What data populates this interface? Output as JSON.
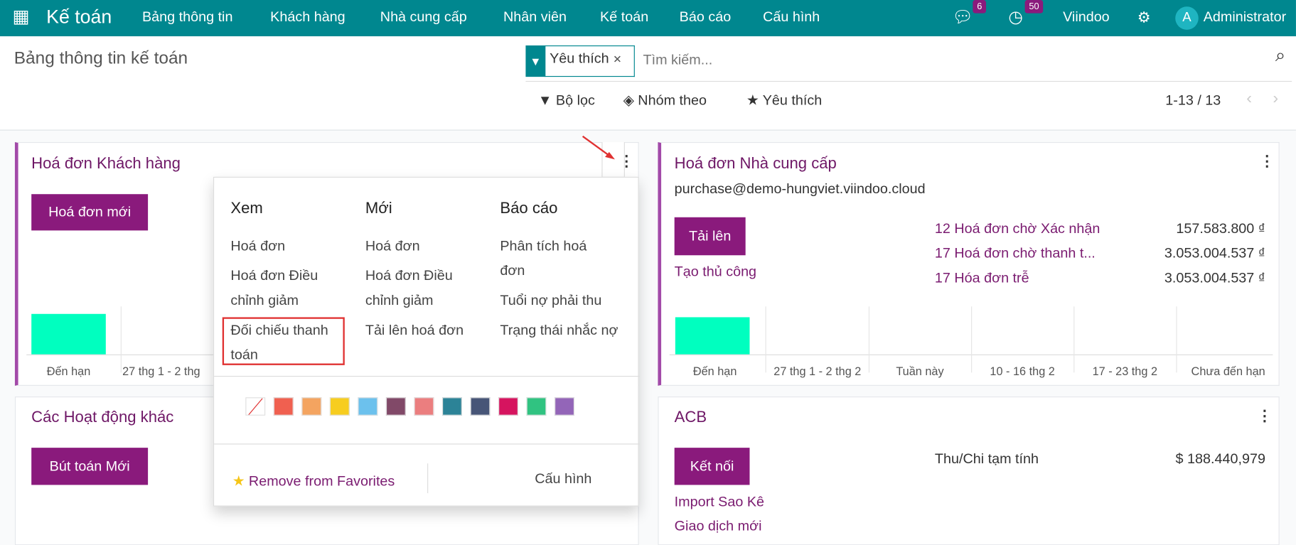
{
  "navbar": {
    "app_name": "Kế toán",
    "menu": [
      "Bảng thông tin",
      "Khách hàng",
      "Nhà cung cấp",
      "Nhân viên",
      "Kế toán",
      "Báo cáo",
      "Cấu hình"
    ],
    "messages_count": "6",
    "activities_count": "50",
    "company": "Viindoo",
    "user_initial": "A",
    "user_name": "Administrator"
  },
  "control_panel": {
    "title": "Bảng thông tin kế toán",
    "facet": "Yêu thích",
    "search_placeholder": "Tìm kiếm...",
    "filter_label": "Bộ lọc",
    "group_label": "Nhóm theo",
    "favorites_label": "Yêu thích",
    "pager": "1-13 / 13"
  },
  "cards": {
    "customer": {
      "title": "Hoá đơn Khách hàng",
      "button": "Hoá đơn mới",
      "axis": [
        "Đến hạn",
        "27 thg 1 - 2 thg"
      ]
    },
    "vendor": {
      "title": "Hoá đơn Nhà cung cấp",
      "email": "purchase@demo-hungviet.viindoo.cloud",
      "button": "Tải lên",
      "manual": "Tạo thủ công",
      "stats": [
        {
          "label": "12 Hoá đơn chờ Xác nhận",
          "amount": "157.583.800 ₫"
        },
        {
          "label": "17 Hoá đơn chờ thanh t...",
          "amount": "3.053.004.537 ₫"
        },
        {
          "label": "17 Hóa đơn trễ",
          "amount": "3.053.004.537 ₫"
        }
      ],
      "axis": [
        "Đến hạn",
        "27 thg 1 - 2 thg 2",
        "Tuần này",
        "10 - 16 thg 2",
        "17 - 23 thg 2",
        "Chưa đến hạn"
      ]
    },
    "misc": {
      "title": "Các Hoạt động khác",
      "button": "Bút toán Mới"
    },
    "bank": {
      "title": "ACB",
      "button": "Kết nối",
      "import": "Import Sao Kê",
      "new_tx": "Giao dịch mới",
      "balance_label": "Thu/Chi tạm tính",
      "balance": "$ 188.440,979"
    }
  },
  "dropdown": {
    "columns": [
      {
        "header": "Xem",
        "items": [
          "Hoá đơn",
          "Hoá đơn Điều chỉnh giảm",
          "Đối chiếu thanh toán"
        ]
      },
      {
        "header": "Mới",
        "items": [
          "Hoá đơn",
          "Hoá đơn Điều chỉnh giảm",
          "Tải lên hoá đơn"
        ]
      },
      {
        "header": "Báo cáo",
        "items": [
          "Phân tích hoá đơn",
          "Tuổi nợ phải thu",
          "Trạng thái nhắc nợ"
        ]
      }
    ],
    "colors": [
      "#f06050",
      "#f4a460",
      "#f7cd1f",
      "#6cc1ed",
      "#814968",
      "#eb7e7f",
      "#2c8397",
      "#475577",
      "#d6145f",
      "#30c381",
      "#9365b8"
    ],
    "remove_favorites": "Remove from Favorites",
    "settings": "Cấu hình"
  },
  "accent": {
    "nav": "#00878f",
    "brand": "#8a1a7c",
    "bar": "#00ffbf"
  }
}
